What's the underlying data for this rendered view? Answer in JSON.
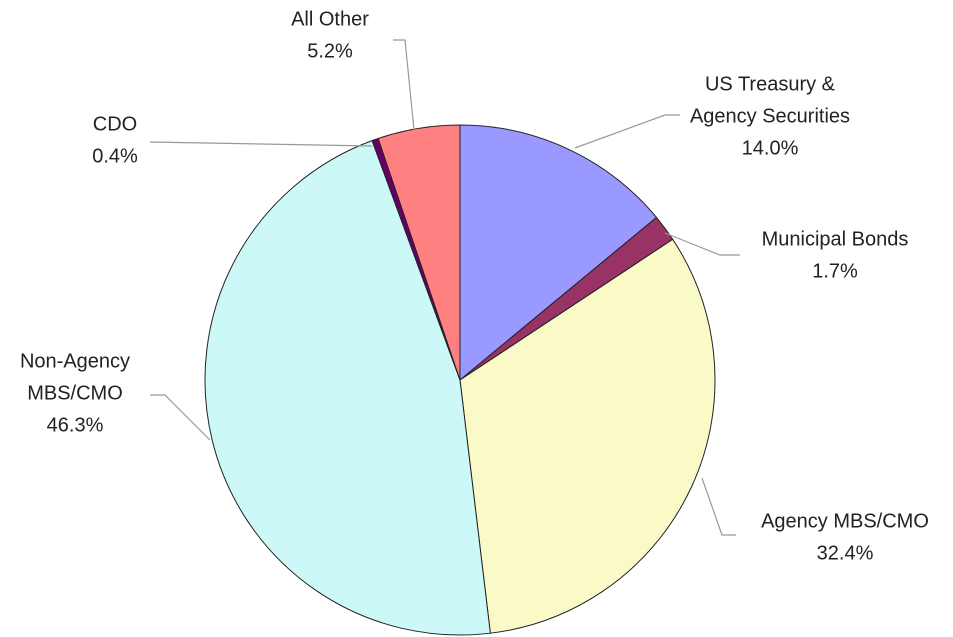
{
  "chart_data": {
    "type": "pie",
    "categories": [
      [
        "US Treasury &",
        "Agency Securities"
      ],
      [
        "Municipal Bonds"
      ],
      [
        "Agency MBS/CMO"
      ],
      [
        "Non-Agency",
        "MBS/CMO"
      ],
      [
        "CDO"
      ],
      [
        "All Other"
      ]
    ],
    "values": [
      14,
      1.7,
      32.4,
      46.3,
      0.4,
      5.2
    ],
    "value_labels": [
      "14.0%",
      "1.7%",
      "32.4%",
      "46.3%",
      "0.4%",
      "5.2%"
    ],
    "colors": [
      "#9999ff",
      "#993366",
      "#fafac8",
      "#ccf8f8",
      "#660066",
      "#ff8080"
    ]
  }
}
